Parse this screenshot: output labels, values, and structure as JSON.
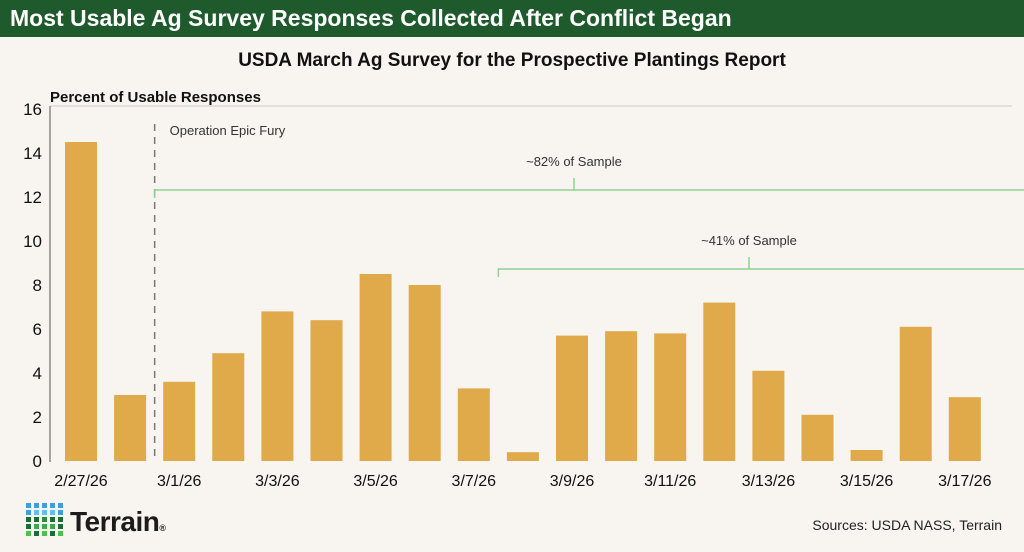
{
  "header": {
    "title": "Most Usable Ag Survey Responses Collected After Conflict Began"
  },
  "chart_data": {
    "type": "bar",
    "title": "USDA March Ag Survey for the Prospective Plantings Report",
    "ylabel": "Percent of Usable Responses",
    "xlabel": "",
    "ylim": [
      0,
      16
    ],
    "yticks": [
      0,
      2,
      4,
      6,
      8,
      10,
      12,
      14,
      16
    ],
    "grid": false,
    "bar_color": "#e0a94a",
    "categories": [
      "2/27/26",
      "2/28/26",
      "3/1/26",
      "3/2/26",
      "3/3/26",
      "3/4/26",
      "3/5/26",
      "3/6/26",
      "3/7/26",
      "3/8/26",
      "3/9/26",
      "3/10/26",
      "3/11/26",
      "3/12/26",
      "3/13/26",
      "3/14/26",
      "3/15/26",
      "3/16/26",
      "3/17/26"
    ],
    "xtick_labels": [
      "2/27/26",
      "3/1/26",
      "3/3/26",
      "3/5/26",
      "3/7/26",
      "3/9/26",
      "3/11/26",
      "3/13/26",
      "3/15/26",
      "3/17/26"
    ],
    "values": [
      14.5,
      3.0,
      3.6,
      4.9,
      6.8,
      6.4,
      8.5,
      8.0,
      3.3,
      0.4,
      5.7,
      5.9,
      5.8,
      7.2,
      4.1,
      2.1,
      0.5,
      6.1,
      2.9
    ],
    "annotations": [
      {
        "text": "Operation Epic Fury",
        "type": "vertical-dashed-line",
        "between": [
          "2/28/26",
          "3/1/26"
        ]
      },
      {
        "text": "~82% of Sample",
        "type": "bracket",
        "start_between": [
          "2/28/26",
          "3/1/26"
        ],
        "color": "#8fd18f"
      },
      {
        "text": "~41% of Sample",
        "type": "bracket",
        "start_between": [
          "3/7/26",
          "3/8/26"
        ],
        "color": "#8fd18f"
      }
    ]
  },
  "footer": {
    "logo": "Terrain.",
    "sources": "Sources: USDA NASS, Terrain"
  }
}
